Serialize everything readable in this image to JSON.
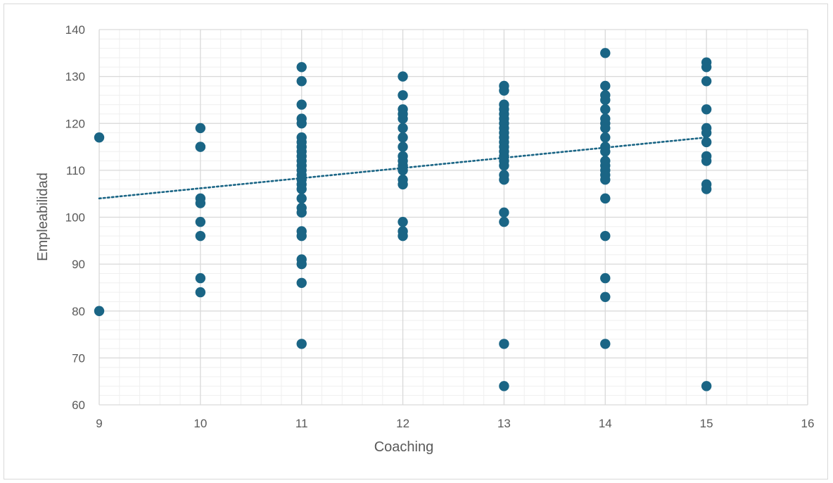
{
  "chart_data": {
    "type": "scatter",
    "title": "",
    "xlabel": "Coaching",
    "ylabel": "Empleabilidad",
    "xlim": [
      9,
      16
    ],
    "ylim": [
      60,
      140
    ],
    "x_ticks": [
      9,
      10,
      11,
      12,
      13,
      14,
      15,
      16
    ],
    "y_ticks": [
      60,
      70,
      80,
      90,
      100,
      110,
      120,
      130,
      140
    ],
    "grid": "major and minor",
    "marker_color": "#1a6585",
    "trendline": {
      "type": "linear",
      "style": "dotted",
      "color": "#1a6585",
      "x": [
        9,
        15
      ],
      "y": [
        104,
        117
      ]
    },
    "series": [
      {
        "points": [
          [
            9,
            117
          ],
          [
            9,
            80
          ],
          [
            10,
            119
          ],
          [
            10,
            115
          ],
          [
            10,
            115
          ],
          [
            10,
            104
          ],
          [
            10,
            103
          ],
          [
            10,
            99
          ],
          [
            10,
            96
          ],
          [
            10,
            87
          ],
          [
            10,
            84
          ],
          [
            11,
            132
          ],
          [
            11,
            129
          ],
          [
            11,
            124
          ],
          [
            11,
            121
          ],
          [
            11,
            120
          ],
          [
            11,
            117
          ],
          [
            11,
            116
          ],
          [
            11,
            115
          ],
          [
            11,
            114
          ],
          [
            11,
            113
          ],
          [
            11,
            112
          ],
          [
            11,
            111
          ],
          [
            11,
            110
          ],
          [
            11,
            109
          ],
          [
            11,
            108
          ],
          [
            11,
            107
          ],
          [
            11,
            106
          ],
          [
            11,
            104
          ],
          [
            11,
            102
          ],
          [
            11,
            101
          ],
          [
            11,
            97
          ],
          [
            11,
            96
          ],
          [
            11,
            91
          ],
          [
            11,
            90
          ],
          [
            11,
            86
          ],
          [
            11,
            73
          ],
          [
            12,
            130
          ],
          [
            12,
            126
          ],
          [
            12,
            123
          ],
          [
            12,
            122
          ],
          [
            12,
            121
          ],
          [
            12,
            119
          ],
          [
            12,
            117
          ],
          [
            12,
            115
          ],
          [
            12,
            113
          ],
          [
            12,
            112
          ],
          [
            12,
            111
          ],
          [
            12,
            110
          ],
          [
            12,
            108
          ],
          [
            12,
            107
          ],
          [
            12,
            99
          ],
          [
            12,
            97
          ],
          [
            12,
            96
          ],
          [
            13,
            128
          ],
          [
            13,
            127
          ],
          [
            13,
            124
          ],
          [
            13,
            123
          ],
          [
            13,
            122
          ],
          [
            13,
            121
          ],
          [
            13,
            120
          ],
          [
            13,
            119
          ],
          [
            13,
            118
          ],
          [
            13,
            117
          ],
          [
            13,
            116
          ],
          [
            13,
            115
          ],
          [
            13,
            114
          ],
          [
            13,
            113
          ],
          [
            13,
            112
          ],
          [
            13,
            111
          ],
          [
            13,
            109
          ],
          [
            13,
            108
          ],
          [
            13,
            101
          ],
          [
            13,
            99
          ],
          [
            13,
            73
          ],
          [
            13,
            64
          ],
          [
            14,
            135
          ],
          [
            14,
            128
          ],
          [
            14,
            126
          ],
          [
            14,
            125
          ],
          [
            14,
            123
          ],
          [
            14,
            121
          ],
          [
            14,
            120
          ],
          [
            14,
            119
          ],
          [
            14,
            117
          ],
          [
            14,
            115
          ],
          [
            14,
            114
          ],
          [
            14,
            112
          ],
          [
            14,
            111
          ],
          [
            14,
            110
          ],
          [
            14,
            109
          ],
          [
            14,
            108
          ],
          [
            14,
            104
          ],
          [
            14,
            96
          ],
          [
            14,
            87
          ],
          [
            14,
            83
          ],
          [
            14,
            73
          ],
          [
            15,
            133
          ],
          [
            15,
            132
          ],
          [
            15,
            129
          ],
          [
            15,
            123
          ],
          [
            15,
            119
          ],
          [
            15,
            118
          ],
          [
            15,
            116
          ],
          [
            15,
            113
          ],
          [
            15,
            112
          ],
          [
            15,
            107
          ],
          [
            15,
            106
          ],
          [
            15,
            64
          ]
        ]
      }
    ]
  }
}
